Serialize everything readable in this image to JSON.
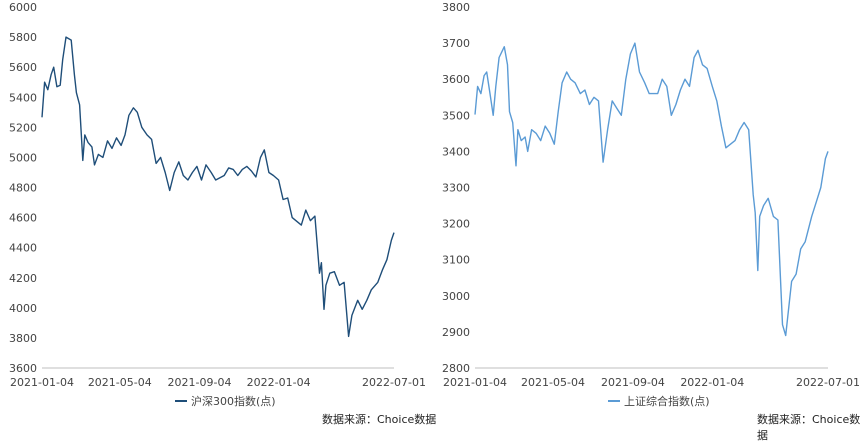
{
  "chart_data": [
    {
      "type": "line",
      "x_ticks": [
        "2021-01-04",
        "2021-05-04",
        "2021-09-04",
        "2022-01-04",
        "2022-07-01"
      ],
      "y_ticks": [
        "6000",
        "5800",
        "5600",
        "5400",
        "5200",
        "5000",
        "4800",
        "4600",
        "4400",
        "4200",
        "4000",
        "3800",
        "3600"
      ],
      "ylim": [
        3600,
        6000
      ],
      "series": [
        {
          "name": "沪深300指数(点)",
          "color": "#1f4e79",
          "x": [
            "2021-01-04",
            "2021-01-08",
            "2021-01-13",
            "2021-01-18",
            "2021-01-22",
            "2021-01-27",
            "2021-02-01",
            "2021-02-05",
            "2021-02-10",
            "2021-02-18",
            "2021-02-23",
            "2021-02-26",
            "2021-03-03",
            "2021-03-08",
            "2021-03-11",
            "2021-03-16",
            "2021-03-22",
            "2021-03-26",
            "2021-04-01",
            "2021-04-08",
            "2021-04-15",
            "2021-04-22",
            "2021-04-29",
            "2021-05-06",
            "2021-05-12",
            "2021-05-18",
            "2021-05-25",
            "2021-05-31",
            "2021-06-07",
            "2021-06-15",
            "2021-06-22",
            "2021-06-29",
            "2021-07-06",
            "2021-07-13",
            "2021-07-20",
            "2021-07-27",
            "2021-08-03",
            "2021-08-10",
            "2021-08-17",
            "2021-08-24",
            "2021-08-31",
            "2021-09-07",
            "2021-09-14",
            "2021-09-22",
            "2021-09-29",
            "2021-10-12",
            "2021-10-19",
            "2021-10-26",
            "2021-11-02",
            "2021-11-09",
            "2021-11-16",
            "2021-11-23",
            "2021-11-30",
            "2021-12-07",
            "2021-12-13",
            "2021-12-20",
            "2021-12-27",
            "2022-01-04",
            "2022-01-11",
            "2022-01-18",
            "2022-01-25",
            "2022-02-08",
            "2022-02-15",
            "2022-02-22",
            "2022-03-01",
            "2022-03-08",
            "2022-03-11",
            "2022-03-15",
            "2022-03-18",
            "2022-03-24",
            "2022-03-31",
            "2022-04-08",
            "2022-04-15",
            "2022-04-22",
            "2022-04-27",
            "2022-05-06",
            "2022-05-13",
            "2022-05-20",
            "2022-05-27",
            "2022-06-06",
            "2022-06-13",
            "2022-06-20",
            "2022-06-27",
            "2022-07-01"
          ],
          "values": [
            5267,
            5500,
            5450,
            5550,
            5600,
            5470,
            5480,
            5650,
            5800,
            5780,
            5550,
            5430,
            5350,
            4980,
            5150,
            5100,
            5070,
            4950,
            5020,
            5000,
            5110,
            5060,
            5130,
            5080,
            5150,
            5280,
            5330,
            5300,
            5200,
            5150,
            5120,
            4960,
            5000,
            4900,
            4780,
            4900,
            4970,
            4880,
            4850,
            4900,
            4940,
            4850,
            4950,
            4900,
            4850,
            4880,
            4930,
            4920,
            4880,
            4920,
            4940,
            4910,
            4870,
            5000,
            5050,
            4900,
            4880,
            4850,
            4720,
            4730,
            4600,
            4550,
            4650,
            4580,
            4610,
            4230,
            4300,
            3990,
            4150,
            4230,
            4240,
            4150,
            4170,
            3810,
            3950,
            4050,
            3990,
            4050,
            4120,
            4170,
            4250,
            4320,
            4450,
            4500
          ]
        }
      ]
    },
    {
      "type": "line",
      "x_ticks": [
        "2021-01-04",
        "2021-05-04",
        "2021-09-04",
        "2022-01-04",
        "2022-07-01"
      ],
      "y_ticks": [
        "3800",
        "3700",
        "3600",
        "3500",
        "3400",
        "3300",
        "3200",
        "3100",
        "3000",
        "2900",
        "2800"
      ],
      "ylim": [
        2800,
        3800
      ],
      "series": [
        {
          "name": "上证综合指数(点)",
          "color": "#5b9bd5",
          "x": [
            "2021-01-04",
            "2021-01-08",
            "2021-01-13",
            "2021-01-18",
            "2021-01-22",
            "2021-01-27",
            "2021-02-01",
            "2021-02-05",
            "2021-02-10",
            "2021-02-18",
            "2021-02-23",
            "2021-02-26",
            "2021-03-03",
            "2021-03-08",
            "2021-03-11",
            "2021-03-16",
            "2021-03-22",
            "2021-03-26",
            "2021-04-01",
            "2021-04-08",
            "2021-04-15",
            "2021-04-22",
            "2021-04-29",
            "2021-05-06",
            "2021-05-12",
            "2021-05-18",
            "2021-05-25",
            "2021-05-31",
            "2021-06-07",
            "2021-06-15",
            "2021-06-22",
            "2021-06-29",
            "2021-07-06",
            "2021-07-13",
            "2021-07-20",
            "2021-07-27",
            "2021-08-03",
            "2021-08-10",
            "2021-08-17",
            "2021-08-24",
            "2021-08-31",
            "2021-09-07",
            "2021-09-14",
            "2021-09-22",
            "2021-09-29",
            "2021-10-12",
            "2021-10-19",
            "2021-10-26",
            "2021-11-02",
            "2021-11-09",
            "2021-11-16",
            "2021-11-23",
            "2021-11-30",
            "2021-12-07",
            "2021-12-13",
            "2021-12-20",
            "2021-12-27",
            "2022-01-04",
            "2022-01-11",
            "2022-01-18",
            "2022-01-25",
            "2022-02-08",
            "2022-02-15",
            "2022-02-22",
            "2022-03-01",
            "2022-03-08",
            "2022-03-11",
            "2022-03-15",
            "2022-03-18",
            "2022-03-24",
            "2022-03-31",
            "2022-04-08",
            "2022-04-15",
            "2022-04-22",
            "2022-04-27",
            "2022-05-06",
            "2022-05-13",
            "2022-05-20",
            "2022-05-27",
            "2022-06-06",
            "2022-06-13",
            "2022-06-20",
            "2022-06-27",
            "2022-07-01"
          ],
          "values": [
            3502,
            3580,
            3560,
            3610,
            3620,
            3560,
            3500,
            3580,
            3660,
            3690,
            3640,
            3510,
            3480,
            3360,
            3460,
            3430,
            3440,
            3400,
            3460,
            3450,
            3430,
            3470,
            3450,
            3420,
            3510,
            3590,
            3620,
            3600,
            3590,
            3560,
            3570,
            3530,
            3550,
            3540,
            3370,
            3460,
            3540,
            3520,
            3500,
            3600,
            3670,
            3700,
            3620,
            3590,
            3560,
            3560,
            3600,
            3580,
            3500,
            3530,
            3570,
            3600,
            3580,
            3660,
            3680,
            3640,
            3630,
            3580,
            3540,
            3470,
            3410,
            3430,
            3460,
            3480,
            3460,
            3280,
            3230,
            3070,
            3220,
            3250,
            3270,
            3220,
            3210,
            2920,
            2890,
            3040,
            3060,
            3130,
            3150,
            3220,
            3260,
            3300,
            3380,
            3400
          ]
        }
      ]
    }
  ],
  "source_left": "数据来源：Choice数据",
  "source_right": "数据来源：Choice数据"
}
